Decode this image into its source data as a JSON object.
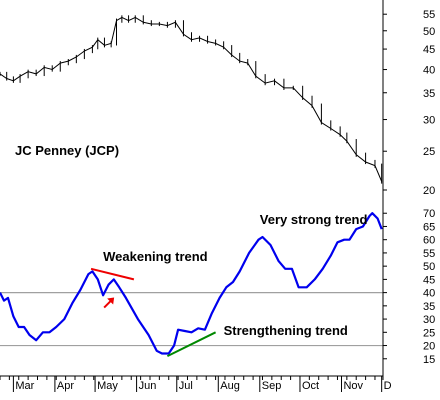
{
  "chart_data": [
    {
      "type": "line",
      "title": "JC Penney (JCP)",
      "subtype": "price-bars",
      "y_scale": "log",
      "ylim": [
        20,
        57
      ],
      "y_ticks": [
        20,
        25,
        30,
        35,
        40,
        45,
        50,
        55
      ],
      "x_ticks": [
        "Mar",
        "Apr",
        "May",
        "Jun",
        "Jul",
        "Aug",
        "Sep",
        "Oct",
        "Nov",
        "D"
      ],
      "series": [
        {
          "color": "#000000",
          "points": [
            [
              "Feb-20",
              39
            ],
            [
              "Feb-25",
              38
            ],
            [
              "Mar-01",
              37.5
            ],
            [
              "Mar-06",
              38.5
            ],
            [
              "Mar-12",
              39.5
            ],
            [
              "Mar-18",
              39
            ],
            [
              "Mar-24",
              40.5
            ],
            [
              "Mar-30",
              40
            ],
            [
              "Apr-05",
              41.5
            ],
            [
              "Apr-11",
              42
            ],
            [
              "Apr-17",
              43
            ],
            [
              "Apr-23",
              44.5
            ],
            [
              "Apr-29",
              45.5
            ],
            [
              "May-03",
              47.5
            ],
            [
              "May-08",
              46
            ],
            [
              "May-13",
              46.5
            ],
            [
              "May-17",
              53
            ],
            [
              "May-21",
              54
            ],
            [
              "May-26",
              53
            ],
            [
              "May-31",
              54
            ],
            [
              "Jun-06",
              52.5
            ],
            [
              "Jun-12",
              52
            ],
            [
              "Jun-18",
              52
            ],
            [
              "Jun-24",
              51.5
            ],
            [
              "Jun-30",
              52.5
            ],
            [
              "Jul-06",
              49
            ],
            [
              "Jul-12",
              47.5
            ],
            [
              "Jul-18",
              48
            ],
            [
              "Jul-24",
              47
            ],
            [
              "Jul-30",
              46.5
            ],
            [
              "Aug-05",
              45.5
            ],
            [
              "Aug-11",
              43.5
            ],
            [
              "Aug-17",
              42
            ],
            [
              "Aug-23",
              41.5
            ],
            [
              "Aug-29",
              38.5
            ],
            [
              "Sep-05",
              37
            ],
            [
              "Sep-12",
              37.5
            ],
            [
              "Sep-19",
              36
            ],
            [
              "Sep-26",
              36
            ],
            [
              "Oct-03",
              34
            ],
            [
              "Oct-10",
              32.5
            ],
            [
              "Oct-17",
              29.5
            ],
            [
              "Oct-24",
              28.5
            ],
            [
              "Oct-31",
              27.5
            ],
            [
              "Nov-05",
              26.5
            ],
            [
              "Nov-12",
              24.5
            ],
            [
              "Nov-19",
              23.5
            ],
            [
              "Nov-26",
              23
            ],
            [
              "Dec-01",
              21
            ]
          ]
        }
      ]
    },
    {
      "type": "line",
      "ylim": [
        10,
        75
      ],
      "y_ticks": [
        15,
        20,
        25,
        30,
        35,
        40,
        45,
        50,
        55,
        60,
        65,
        70
      ],
      "reference_lines": [
        40,
        20
      ],
      "x_ticks": [
        "Mar",
        "Apr",
        "May",
        "Jun",
        "Jul",
        "Aug",
        "Sep",
        "Oct",
        "Nov",
        "D"
      ],
      "series": [
        {
          "color": "#0000ee",
          "points": [
            [
              "Feb-20",
              40
            ],
            [
              "Feb-23",
              37
            ],
            [
              "Feb-26",
              38
            ],
            [
              "Mar-01",
              31
            ],
            [
              "Mar-05",
              27
            ],
            [
              "Mar-09",
              27
            ],
            [
              "Mar-13",
              24
            ],
            [
              "Mar-18",
              22
            ],
            [
              "Mar-23",
              25
            ],
            [
              "Mar-28",
              25
            ],
            [
              "Apr-02",
              27
            ],
            [
              "Apr-08",
              30
            ],
            [
              "Apr-14",
              36
            ],
            [
              "Apr-20",
              41
            ],
            [
              "Apr-26",
              47
            ],
            [
              "Apr-29",
              48
            ],
            [
              "May-03",
              45
            ],
            [
              "May-07",
              39
            ],
            [
              "May-11",
              43
            ],
            [
              "May-15",
              45
            ],
            [
              "May-19",
              42
            ],
            [
              "May-24",
              38
            ],
            [
              "Jun-02",
              30
            ],
            [
              "Jun-10",
              24
            ],
            [
              "Jun-16",
              18
            ],
            [
              "Jun-20",
              17
            ],
            [
              "Jun-25",
              17
            ],
            [
              "Jun-29",
              20
            ],
            [
              "Jul-02",
              26
            ],
            [
              "Jul-07",
              25.5
            ],
            [
              "Jul-12",
              25
            ],
            [
              "Jul-17",
              26.5
            ],
            [
              "Jul-22",
              26
            ],
            [
              "Jul-27",
              32
            ],
            [
              "Aug-02",
              38
            ],
            [
              "Aug-07",
              42
            ],
            [
              "Aug-12",
              44
            ],
            [
              "Aug-17",
              48
            ],
            [
              "Aug-24",
              55
            ],
            [
              "Aug-31",
              60
            ],
            [
              "Sep-03",
              61
            ],
            [
              "Sep-09",
              58
            ],
            [
              "Sep-15",
              52
            ],
            [
              "Sep-20",
              49
            ],
            [
              "Sep-25",
              49
            ],
            [
              "Sep-30",
              42
            ],
            [
              "Oct-06",
              42
            ],
            [
              "Oct-12",
              45
            ],
            [
              "Oct-18",
              49
            ],
            [
              "Oct-24",
              54
            ],
            [
              "Oct-29",
              59
            ],
            [
              "Nov-03",
              60
            ],
            [
              "Nov-07",
              60
            ],
            [
              "Nov-12",
              64
            ],
            [
              "Nov-17",
              65
            ],
            [
              "Nov-22",
              69
            ],
            [
              "Nov-24",
              70
            ],
            [
              "Nov-28",
              68
            ],
            [
              "Dec-01",
              64
            ]
          ]
        }
      ],
      "trendlines": [
        {
          "color": "#ee0000",
          "from": [
            "Apr-28",
            49
          ],
          "to": [
            "May-30",
            45
          ]
        },
        {
          "color": "#008800",
          "from": [
            "Jun-24",
            16
          ],
          "to": [
            "Jul-30",
            25
          ]
        }
      ],
      "annotations": [
        {
          "label": "Weakening trend",
          "at": [
            "May-07",
            52
          ]
        },
        {
          "label": "Strengthening trend",
          "at": [
            "Aug-05",
            24
          ]
        },
        {
          "label": "Very strong trend",
          "at": [
            "Sep-01",
            66
          ]
        },
        {
          "label": "",
          "arrow": true,
          "color": "#ee0000",
          "at": [
            "May-13",
            37
          ]
        }
      ]
    }
  ]
}
